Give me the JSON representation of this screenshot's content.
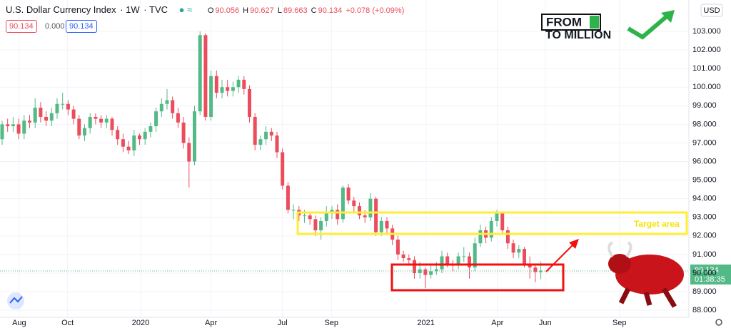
{
  "chart_data": {
    "type": "candlestick",
    "title": "U.S. Dollar Currency Index",
    "interval": "1W",
    "source": "TVC",
    "ohlc_labels": [
      "O",
      "H",
      "L",
      "C"
    ],
    "change": "+0.078 (+0.09%)",
    "price_boxes": [
      "90.134",
      "0.000",
      "90.134"
    ],
    "currency": "USD",
    "last_price": "90.134",
    "countdown": "01:38:35",
    "annotation": "Target area",
    "logo": [
      "FROM",
      "TO MILLION"
    ],
    "up_color": "#53b987",
    "down_color": "#eb4d5c",
    "open": [
      97.2,
      98.0,
      97.9,
      98.0,
      97.5,
      98.2,
      98.1,
      98.9,
      98.4,
      98.2,
      98.6,
      99.1,
      99.1,
      98.8,
      98.3,
      97.4,
      97.8,
      98.4,
      98.3,
      98.1,
      98.3,
      97.7,
      97.2,
      96.8,
      96.6,
      97.4,
      97.2,
      97.6,
      97.9,
      98.7,
      99.1,
      99.3,
      98.6,
      98.1,
      97.0,
      96.0,
      98.7,
      102.8,
      98.4,
      100.6,
      99.7,
      100.0,
      99.8,
      100.0,
      100.4,
      99.9,
      98.4,
      96.9,
      97.2,
      97.6,
      97.4,
      96.5,
      94.7,
      93.4,
      93.4,
      93.1,
      93.1,
      92.9,
      92.3,
      92.8,
      93.3,
      93.4,
      92.9,
      94.6,
      93.9,
      93.6,
      93.1,
      93.0,
      94.0,
      92.2,
      92.8,
      92.4,
      91.8,
      91.0,
      90.8,
      90.7,
      90.0,
      90.2,
      89.9,
      90.1,
      90.2,
      90.9,
      90.5,
      90.4,
      90.9,
      90.9,
      90.3,
      91.6,
      92.3,
      91.9,
      92.8,
      93.2,
      92.3,
      91.6,
      91.1,
      91.3,
      90.5,
      90.3,
      90.056
    ],
    "high": [
      98.2,
      98.3,
      98.4,
      98.3,
      98.5,
      98.5,
      99.4,
      99.2,
      98.7,
      98.9,
      99.4,
      99.7,
      99.3,
      99.0,
      98.5,
      98.0,
      98.6,
      98.6,
      98.5,
      98.5,
      98.4,
      97.9,
      97.5,
      97.1,
      97.7,
      97.5,
      97.8,
      98.1,
      98.9,
      99.4,
      99.9,
      99.5,
      98.9,
      98.4,
      97.3,
      99.0,
      103.0,
      102.9,
      100.9,
      100.9,
      100.4,
      100.4,
      100.3,
      100.6,
      100.6,
      100.1,
      98.6,
      97.4,
      97.9,
      97.8,
      97.6,
      96.7,
      94.9,
      93.7,
      93.6,
      93.4,
      93.3,
      93.1,
      93.0,
      93.6,
      93.6,
      93.7,
      94.7,
      94.8,
      94.1,
      93.8,
      93.4,
      94.3,
      94.1,
      93.0,
      93.0,
      92.6,
      92.0,
      91.2,
      91.0,
      90.9,
      90.6,
      90.3,
      90.5,
      90.6,
      91.2,
      91.1,
      90.7,
      91.1,
      91.4,
      91.1,
      91.9,
      92.6,
      92.5,
      93.0,
      93.4,
      93.3,
      92.5,
      91.8,
      91.5,
      91.4,
      90.9,
      90.4,
      90.627
    ],
    "low": [
      96.9,
      97.6,
      97.6,
      97.2,
      97.2,
      97.8,
      97.8,
      98.1,
      97.9,
      97.9,
      98.3,
      98.8,
      98.5,
      98.0,
      97.2,
      97.1,
      97.5,
      98.0,
      97.8,
      97.8,
      97.4,
      96.9,
      96.5,
      96.4,
      96.3,
      96.9,
      96.9,
      97.3,
      97.6,
      98.4,
      98.8,
      98.3,
      97.8,
      96.7,
      94.6,
      95.8,
      98.5,
      98.2,
      98.2,
      99.4,
      99.4,
      99.5,
      99.5,
      99.7,
      99.6,
      98.1,
      96.6,
      96.6,
      96.9,
      97.1,
      96.2,
      94.5,
      93.2,
      92.9,
      92.8,
      92.7,
      92.6,
      92.0,
      91.8,
      92.5,
      92.9,
      92.6,
      92.7,
      93.7,
      93.3,
      92.9,
      92.7,
      92.8,
      92.0,
      92.0,
      92.1,
      91.5,
      90.7,
      90.6,
      90.4,
      89.7,
      89.7,
      89.2,
      89.7,
      89.9,
      90.0,
      90.3,
      90.1,
      90.2,
      90.6,
      89.7,
      90.1,
      91.4,
      91.6,
      91.7,
      92.5,
      92.1,
      91.3,
      90.8,
      90.8,
      90.3,
      89.7,
      89.5,
      89.663
    ],
    "close": [
      98.0,
      97.9,
      98.0,
      97.5,
      98.2,
      98.1,
      98.9,
      98.4,
      98.2,
      98.6,
      99.1,
      99.1,
      98.8,
      98.3,
      97.4,
      97.8,
      98.4,
      98.3,
      98.1,
      98.3,
      97.7,
      97.2,
      96.8,
      96.6,
      97.4,
      97.2,
      97.6,
      97.9,
      98.7,
      99.1,
      99.3,
      98.6,
      98.1,
      97.0,
      96.0,
      98.7,
      102.8,
      98.4,
      100.6,
      99.7,
      100.0,
      99.8,
      100.0,
      100.4,
      99.9,
      98.4,
      96.9,
      97.2,
      97.6,
      97.4,
      96.5,
      94.7,
      93.4,
      93.4,
      93.1,
      93.1,
      92.9,
      92.3,
      92.8,
      93.3,
      93.4,
      92.9,
      94.6,
      93.9,
      93.6,
      93.1,
      93.0,
      94.0,
      92.2,
      92.8,
      92.4,
      91.8,
      91.0,
      90.8,
      90.7,
      90.0,
      90.2,
      89.9,
      90.1,
      90.2,
      90.9,
      90.5,
      90.4,
      90.9,
      90.9,
      90.3,
      91.6,
      92.3,
      91.9,
      92.8,
      93.2,
      92.3,
      91.6,
      91.1,
      91.3,
      90.5,
      90.3,
      90.056,
      90.134
    ],
    "ylim": [
      87.62,
      104.69
    ],
    "yticks": [
      {
        "value": 88,
        "label": "88.000"
      },
      {
        "value": 89,
        "label": "89.000"
      },
      {
        "value": 90,
        "label": "90.000"
      },
      {
        "value": 91,
        "label": "91.000"
      },
      {
        "value": 92,
        "label": "92.000"
      },
      {
        "value": 93,
        "label": "93.000"
      },
      {
        "value": 94,
        "label": "94.000"
      },
      {
        "value": 95,
        "label": "95.000"
      },
      {
        "value": 96,
        "label": "96.000"
      },
      {
        "value": 97,
        "label": "97.000"
      },
      {
        "value": 98,
        "label": "98.000"
      },
      {
        "value": 99,
        "label": "99.000"
      },
      {
        "value": 100,
        "label": "100.000"
      },
      {
        "value": 101,
        "label": "101.000"
      },
      {
        "value": 102,
        "label": "102.000"
      },
      {
        "value": 103,
        "label": "103.000"
      }
    ],
    "xticks": [
      {
        "value": 3.1,
        "label": "Aug"
      },
      {
        "value": 11.9,
        "label": "Oct"
      },
      {
        "value": 25.2,
        "label": "2020"
      },
      {
        "value": 38,
        "label": "Apr"
      },
      {
        "value": 51,
        "label": "Jul"
      },
      {
        "value": 59.9,
        "label": "Sep"
      },
      {
        "value": 77.1,
        "label": "2021"
      },
      {
        "value": 90.1,
        "label": "Apr"
      },
      {
        "value": 98.8,
        "label": "Jun"
      },
      {
        "value": 112.3,
        "label": "Sep"
      }
    ],
    "grid": true
  }
}
